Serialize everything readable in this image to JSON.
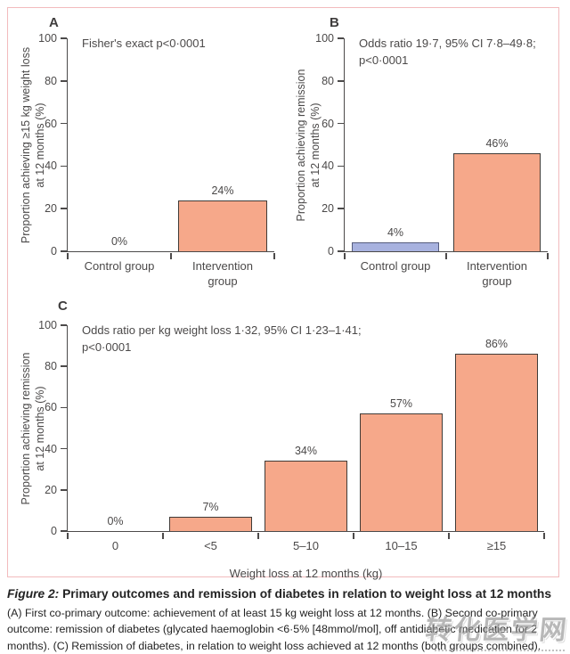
{
  "colors": {
    "salmon_fill": "#F6A88A",
    "salmon_border": "#403B37",
    "blue_fill": "#A8B2DF",
    "blue_border": "#555C7E",
    "frame_border": "#F2BBBD",
    "axis": "#4C4A4A",
    "text": "#4B4949"
  },
  "chart_data": [
    {
      "id": "A",
      "type": "bar",
      "panel_label": "A",
      "annotation": "Fisher's exact p<0·0001",
      "ylabel_line1": "Proportion achieving ≥15 kg weight loss",
      "ylabel_line2": "at 12 months (%)",
      "xlabel": "",
      "categories": [
        "Control group",
        "Intervention group"
      ],
      "values": [
        0,
        24
      ],
      "value_labels": [
        "0%",
        "24%"
      ],
      "bar_styles": [
        "none",
        "salmon"
      ],
      "yticks": [
        0,
        20,
        40,
        60,
        80,
        100
      ],
      "ylim": [
        0,
        100
      ],
      "grid": false,
      "legend": "none"
    },
    {
      "id": "B",
      "type": "bar",
      "panel_label": "B",
      "annotation": "Odds ratio 19·7, 95% CI 7·8–49·8;\np<0·0001",
      "ylabel_line1": "Proportion achieving remission",
      "ylabel_line2": "at 12 months (%)",
      "xlabel": "",
      "categories": [
        "Control group",
        "Intervention group"
      ],
      "values": [
        4,
        46
      ],
      "value_labels": [
        "4%",
        "46%"
      ],
      "bar_styles": [
        "blue",
        "salmon"
      ],
      "yticks": [
        0,
        20,
        40,
        60,
        80,
        100
      ],
      "ylim": [
        0,
        100
      ],
      "grid": false,
      "legend": "none"
    },
    {
      "id": "C",
      "type": "bar",
      "panel_label": "C",
      "annotation": "Odds ratio per kg weight loss 1·32, 95% CI 1·23–1·41;\np<0·0001",
      "ylabel_line1": "Proportion achieving remission",
      "ylabel_line2": "at 12 months (%)",
      "xlabel": "Weight loss at 12 months (kg)",
      "categories": [
        "0",
        "<5",
        "5–10",
        "10–15",
        "≥15"
      ],
      "values": [
        0,
        7,
        34,
        57,
        86
      ],
      "value_labels": [
        "0%",
        "7%",
        "34%",
        "57%",
        "86%"
      ],
      "bar_styles": [
        "none",
        "salmon",
        "salmon",
        "salmon",
        "salmon"
      ],
      "yticks": [
        0,
        20,
        40,
        60,
        80,
        100
      ],
      "ylim": [
        0,
        100
      ],
      "grid": false,
      "legend": "none"
    }
  ],
  "caption": {
    "title_prefix": "Figure 2:",
    "title": " Primary outcomes and remission of diabetes in relation to weight loss at 12 months",
    "body": "(A) First co-primary outcome: achievement of at least 15 kg weight loss at 12 months. (B) Second co-primary outcome: remission of diabetes (glycated haemoglobin <6·5% [48mmol/mol], off antidiabetic medication for 2 months). (C) Remission of diabetes, in relation to weight loss achieved at 12 months (both groups combined)."
  },
  "watermark": {
    "text": "转化医学网"
  }
}
